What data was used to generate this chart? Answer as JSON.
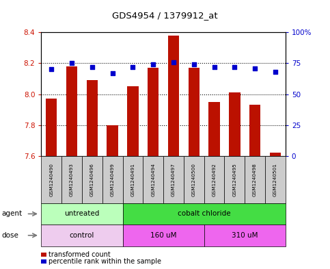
{
  "title": "GDS4954 / 1379912_at",
  "samples": [
    "GSM1240490",
    "GSM1240493",
    "GSM1240496",
    "GSM1240499",
    "GSM1240491",
    "GSM1240494",
    "GSM1240497",
    "GSM1240500",
    "GSM1240492",
    "GSM1240495",
    "GSM1240498",
    "GSM1240501"
  ],
  "transformed_count": [
    7.97,
    8.18,
    8.09,
    7.8,
    8.05,
    8.17,
    8.38,
    8.17,
    7.95,
    8.01,
    7.93,
    7.62
  ],
  "percentile_rank": [
    70,
    75,
    72,
    67,
    72,
    74,
    76,
    74,
    72,
    72,
    71,
    68
  ],
  "bar_baseline": 7.6,
  "ylim_left": [
    7.6,
    8.4
  ],
  "ylim_right": [
    0,
    100
  ],
  "yticks_left": [
    7.6,
    7.8,
    8.0,
    8.2,
    8.4
  ],
  "yticks_right": [
    0,
    25,
    50,
    75,
    100
  ],
  "ytick_labels_right": [
    "0",
    "25",
    "50",
    "75",
    "100%"
  ],
  "bar_color": "#bb1100",
  "dot_color": "#0000cc",
  "agent_groups": [
    {
      "label": "untreated",
      "start": 0,
      "end": 4,
      "color": "#bbffbb"
    },
    {
      "label": "cobalt chloride",
      "start": 4,
      "end": 12,
      "color": "#44dd44"
    }
  ],
  "dose_groups": [
    {
      "label": "control",
      "start": 0,
      "end": 4,
      "color": "#eeccee"
    },
    {
      "label": "160 uM",
      "start": 4,
      "end": 8,
      "color": "#ee66ee"
    },
    {
      "label": "310 uM",
      "start": 8,
      "end": 12,
      "color": "#ee66ee"
    }
  ],
  "legend_bar_label": "transformed count",
  "legend_dot_label": "percentile rank within the sample",
  "tick_label_color_left": "#cc1100",
  "tick_label_color_right": "#0000cc",
  "sample_box_color": "#cccccc",
  "arrow_color": "#888888"
}
